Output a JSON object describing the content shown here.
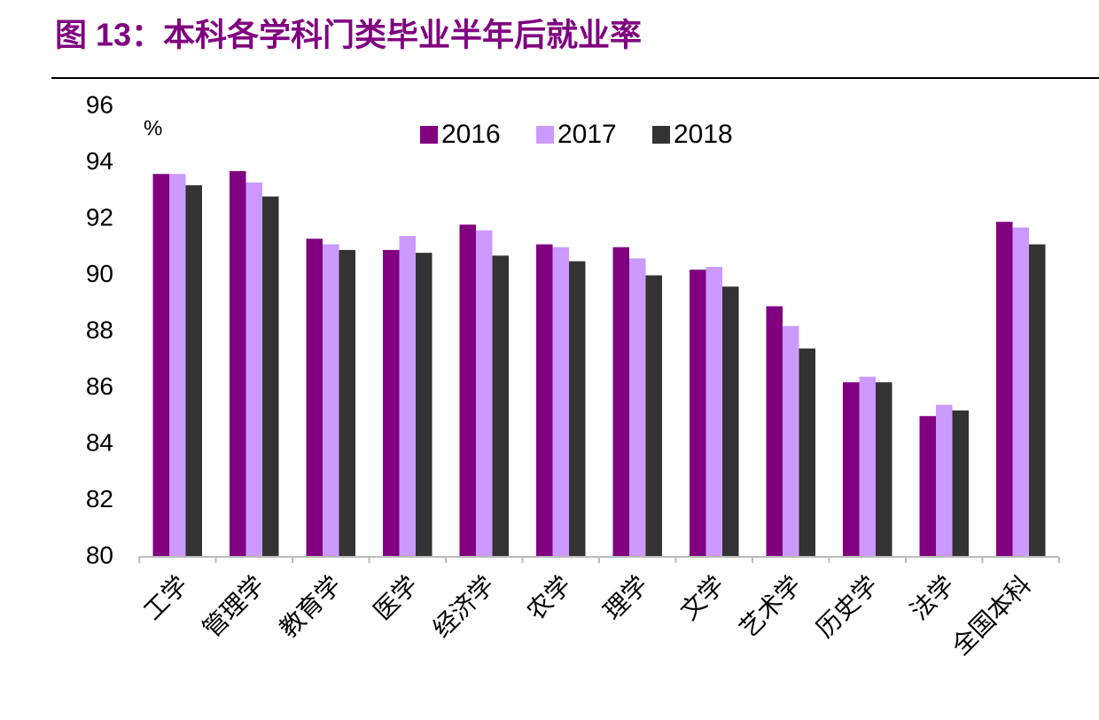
{
  "chart_data": {
    "type": "bar",
    "title": "图 13：本科各学科门类毕业半年后就业率",
    "y_label": "%",
    "categories": [
      "工学",
      "管理学",
      "教育学",
      "医学",
      "经济学",
      "农学",
      "理学",
      "文学",
      "艺术学",
      "历史学",
      "法学",
      "全国本科"
    ],
    "series": [
      {
        "name": "2016",
        "color": "#800080",
        "values": [
          93.6,
          93.7,
          91.3,
          90.9,
          91.8,
          91.1,
          91.0,
          90.2,
          88.9,
          86.2,
          85.0,
          91.9
        ]
      },
      {
        "name": "2017",
        "color": "#cc99ff",
        "values": [
          93.6,
          93.3,
          91.1,
          91.4,
          91.6,
          91.0,
          90.6,
          90.3,
          88.2,
          86.4,
          85.4,
          91.7
        ]
      },
      {
        "name": "2018",
        "color": "#333333",
        "values": [
          93.2,
          92.8,
          90.9,
          90.8,
          90.7,
          90.5,
          90.0,
          89.6,
          87.4,
          86.2,
          85.2,
          91.1
        ]
      }
    ],
    "ylim": [
      80,
      96
    ],
    "yticks": [
      80,
      82,
      84,
      86,
      88,
      90,
      92,
      94,
      96
    ],
    "grid": false,
    "legend": "top"
  }
}
